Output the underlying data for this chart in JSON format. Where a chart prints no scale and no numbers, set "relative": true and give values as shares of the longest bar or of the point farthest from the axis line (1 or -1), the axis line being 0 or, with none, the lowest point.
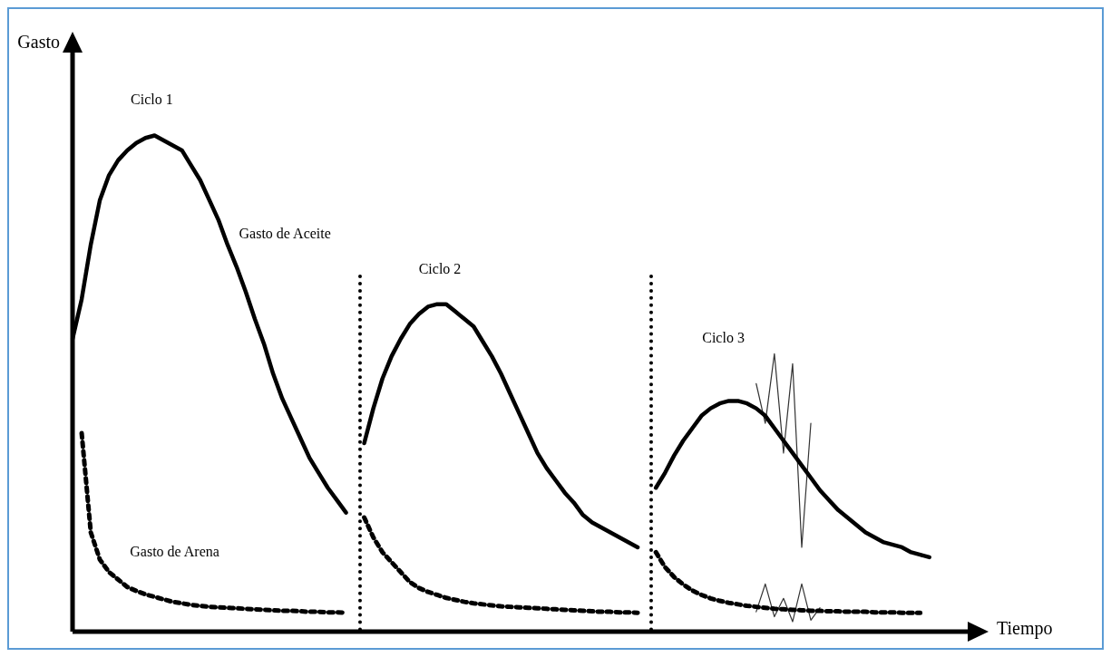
{
  "chart_data": {
    "type": "line",
    "relative": true,
    "xlabel": "Tiempo",
    "ylabel": "Gasto",
    "legend": false,
    "marker": "none",
    "categories": [
      null,
      null,
      null,
      null,
      null,
      null,
      null,
      null,
      null,
      null,
      null,
      null,
      null,
      null,
      null,
      null,
      null,
      null,
      null,
      null,
      null,
      null,
      null,
      null,
      null,
      null,
      null,
      null,
      null,
      null,
      null,
      null,
      null,
      null,
      null,
      null,
      null,
      null,
      null,
      null,
      null,
      null,
      null,
      null,
      null,
      null,
      null,
      null,
      null,
      null,
      null,
      null,
      null,
      null,
      null,
      null,
      null,
      null,
      null,
      null,
      null,
      null,
      null,
      null,
      null,
      null,
      null,
      null,
      null,
      null,
      null,
      null,
      null,
      null,
      null,
      null,
      null,
      null,
      null,
      null,
      null,
      null,
      null,
      null,
      null,
      null,
      null,
      null,
      null,
      null,
      null,
      null,
      null,
      null,
      null,
      null,
      null,
      null,
      null,
      null,
      null
    ],
    "series": [
      {
        "color": "#000000",
        "line_style": "solid",
        "values": [
          0.59,
          0.67,
          0.78,
          0.87,
          0.92,
          0.95,
          0.97,
          0.985,
          0.995,
          1,
          0.99,
          0.98,
          0.97,
          0.94,
          0.91,
          0.87,
          0.83,
          0.78,
          0.735,
          0.685,
          0.63,
          0.58,
          0.52,
          0.47,
          0.43,
          0.39,
          0.35,
          0.32,
          0.29,
          0.265,
          0.24,
          null,
          null,
          null,
          null,
          null,
          null,
          null,
          null,
          null,
          null,
          null,
          null,
          null,
          null,
          null,
          null,
          null,
          null,
          null,
          null,
          null,
          null,
          null,
          null,
          null,
          null,
          null,
          null,
          null,
          null,
          null,
          null,
          null,
          null,
          null,
          null,
          null,
          null,
          null,
          null,
          null,
          null,
          null,
          null,
          null,
          null,
          null,
          null,
          null,
          null,
          null,
          null,
          null,
          null,
          null,
          null,
          null,
          null,
          null,
          null,
          null,
          null,
          null,
          null,
          null,
          null,
          null,
          null,
          null,
          null
        ]
      },
      {
        "color": "#000000",
        "line_style": "solid",
        "values": [
          null,
          null,
          null,
          null,
          null,
          null,
          null,
          null,
          null,
          null,
          null,
          null,
          null,
          null,
          null,
          null,
          null,
          null,
          null,
          null,
          null,
          null,
          null,
          null,
          null,
          null,
          null,
          null,
          null,
          null,
          null,
          null,
          0.38,
          0.45,
          0.51,
          0.555,
          0.59,
          0.62,
          0.64,
          0.655,
          0.66,
          0.66,
          0.645,
          0.63,
          0.615,
          0.585,
          0.555,
          0.52,
          0.48,
          0.44,
          0.4,
          0.36,
          0.33,
          0.305,
          0.28,
          0.26,
          0.235,
          0.22,
          0.21,
          0.2,
          0.19,
          0.18,
          0.17,
          null,
          null,
          null,
          null,
          null,
          null,
          null,
          null,
          null,
          null,
          null,
          null,
          null,
          null,
          null,
          null,
          null,
          null,
          null,
          null,
          null,
          null,
          null,
          null,
          null,
          null,
          null,
          null,
          null,
          null,
          null,
          null,
          null,
          null,
          null,
          null,
          null,
          null
        ]
      },
      {
        "color": "#000000",
        "line_style": "solid",
        "values": [
          null,
          null,
          null,
          null,
          null,
          null,
          null,
          null,
          null,
          null,
          null,
          null,
          null,
          null,
          null,
          null,
          null,
          null,
          null,
          null,
          null,
          null,
          null,
          null,
          null,
          null,
          null,
          null,
          null,
          null,
          null,
          null,
          null,
          null,
          null,
          null,
          null,
          null,
          null,
          null,
          null,
          null,
          null,
          null,
          null,
          null,
          null,
          null,
          null,
          null,
          null,
          null,
          null,
          null,
          null,
          null,
          null,
          null,
          null,
          null,
          null,
          null,
          null,
          null,
          0.29,
          0.32,
          0.355,
          0.385,
          0.41,
          0.435,
          0.45,
          0.46,
          0.465,
          0.465,
          0.46,
          0.45,
          0.435,
          0.41,
          0.385,
          0.36,
          0.335,
          0.31,
          0.285,
          0.265,
          0.245,
          0.23,
          0.215,
          0.2,
          0.19,
          0.18,
          0.175,
          0.17,
          0.16,
          0.155,
          0.15,
          null,
          null,
          null,
          null,
          null,
          null
        ]
      },
      {
        "color": "#000000",
        "line_style": "dotted",
        "values": [
          null,
          0.4,
          0.2,
          0.145,
          0.12,
          0.105,
          0.09,
          0.082,
          0.075,
          0.07,
          0.065,
          0.06,
          0.057,
          0.054,
          0.052,
          0.05,
          0.049,
          0.048,
          0.047,
          0.046,
          0.045,
          0.044,
          0.043,
          0.042,
          0.042,
          0.041,
          0.04,
          0.04,
          0.039,
          0.039,
          0.038,
          null,
          null,
          null,
          null,
          null,
          null,
          null,
          null,
          null,
          null,
          null,
          null,
          null,
          null,
          null,
          null,
          null,
          null,
          null,
          null,
          null,
          null,
          null,
          null,
          null,
          null,
          null,
          null,
          null,
          null,
          null,
          null,
          null,
          null,
          null,
          null,
          null,
          null,
          null,
          null,
          null,
          null,
          null,
          null,
          null,
          null,
          null,
          null,
          null,
          null,
          null,
          null,
          null,
          null,
          null,
          null,
          null,
          null,
          null,
          null,
          null,
          null,
          null,
          null,
          null,
          null,
          null,
          null,
          null,
          null
        ]
      },
      {
        "color": "#000000",
        "line_style": "dotted",
        "values": [
          null,
          null,
          null,
          null,
          null,
          null,
          null,
          null,
          null,
          null,
          null,
          null,
          null,
          null,
          null,
          null,
          null,
          null,
          null,
          null,
          null,
          null,
          null,
          null,
          null,
          null,
          null,
          null,
          null,
          null,
          null,
          null,
          0.23,
          0.19,
          0.16,
          0.14,
          0.12,
          0.1,
          0.088,
          0.08,
          0.074,
          0.068,
          0.064,
          0.06,
          0.057,
          0.055,
          0.053,
          0.051,
          0.05,
          0.049,
          0.048,
          0.047,
          0.046,
          0.045,
          0.044,
          0.043,
          0.042,
          0.041,
          0.04,
          0.04,
          0.039,
          0.039,
          0.038,
          null,
          null,
          null,
          null,
          null,
          null,
          null,
          null,
          null,
          null,
          null,
          null,
          null,
          null,
          null,
          null,
          null,
          null,
          null,
          null,
          null,
          null,
          null,
          null,
          null,
          null,
          null,
          null,
          null,
          null,
          null,
          null,
          null,
          null,
          null,
          null,
          null,
          null
        ]
      },
      {
        "color": "#000000",
        "line_style": "dotted",
        "values": [
          null,
          null,
          null,
          null,
          null,
          null,
          null,
          null,
          null,
          null,
          null,
          null,
          null,
          null,
          null,
          null,
          null,
          null,
          null,
          null,
          null,
          null,
          null,
          null,
          null,
          null,
          null,
          null,
          null,
          null,
          null,
          null,
          null,
          null,
          null,
          null,
          null,
          null,
          null,
          null,
          null,
          null,
          null,
          null,
          null,
          null,
          null,
          null,
          null,
          null,
          null,
          null,
          null,
          null,
          null,
          null,
          null,
          null,
          null,
          null,
          null,
          null,
          null,
          null,
          0.16,
          0.13,
          0.11,
          0.095,
          0.083,
          0.074,
          0.067,
          0.062,
          0.058,
          0.055,
          0.052,
          0.05,
          0.048,
          0.046,
          0.045,
          0.044,
          0.043,
          0.042,
          0.042,
          0.041,
          0.041,
          0.04,
          0.04,
          0.04,
          0.039,
          0.039,
          0.039,
          0.038,
          0.038,
          0.038,
          null,
          null,
          null,
          null,
          null,
          null,
          null
        ]
      },
      {
        "color": "#333333",
        "line_style": "solid",
        "values": [
          null,
          null,
          null,
          null,
          null,
          null,
          null,
          null,
          null,
          null,
          null,
          null,
          null,
          null,
          null,
          null,
          null,
          null,
          null,
          null,
          null,
          null,
          null,
          null,
          null,
          null,
          null,
          null,
          null,
          null,
          null,
          null,
          null,
          null,
          null,
          null,
          null,
          null,
          null,
          null,
          null,
          null,
          null,
          null,
          null,
          null,
          null,
          null,
          null,
          null,
          null,
          null,
          null,
          null,
          null,
          null,
          null,
          null,
          null,
          null,
          null,
          null,
          null,
          null,
          null,
          null,
          null,
          null,
          null,
          null,
          null,
          null,
          null,
          null,
          null,
          0.5,
          0.42,
          0.56,
          0.36,
          0.54,
          0.17,
          0.42,
          null,
          null,
          null,
          null,
          null,
          null,
          null,
          null,
          null,
          null,
          null,
          null,
          null,
          null,
          null,
          null,
          null,
          null,
          null
        ]
      },
      {
        "color": "#333333",
        "line_style": "solid",
        "values": [
          null,
          null,
          null,
          null,
          null,
          null,
          null,
          null,
          null,
          null,
          null,
          null,
          null,
          null,
          null,
          null,
          null,
          null,
          null,
          null,
          null,
          null,
          null,
          null,
          null,
          null,
          null,
          null,
          null,
          null,
          null,
          null,
          null,
          null,
          null,
          null,
          null,
          null,
          null,
          null,
          null,
          null,
          null,
          null,
          null,
          null,
          null,
          null,
          null,
          null,
          null,
          null,
          null,
          null,
          null,
          null,
          null,
          null,
          null,
          null,
          null,
          null,
          null,
          null,
          null,
          null,
          null,
          null,
          null,
          null,
          null,
          null,
          null,
          null,
          null,
          0.04,
          0.096,
          0.03,
          0.067,
          0.02,
          0.096,
          0.023,
          0.048,
          null,
          null,
          null,
          null,
          null,
          null,
          null,
          null,
          null,
          null,
          null,
          null,
          null,
          null,
          null,
          null,
          null,
          null
        ]
      }
    ],
    "annotations": [
      "Ciclo 1",
      "Gasto de Aceite",
      "Ciclo 2",
      "Ciclo 3",
      "Gasto de Arena"
    ]
  }
}
